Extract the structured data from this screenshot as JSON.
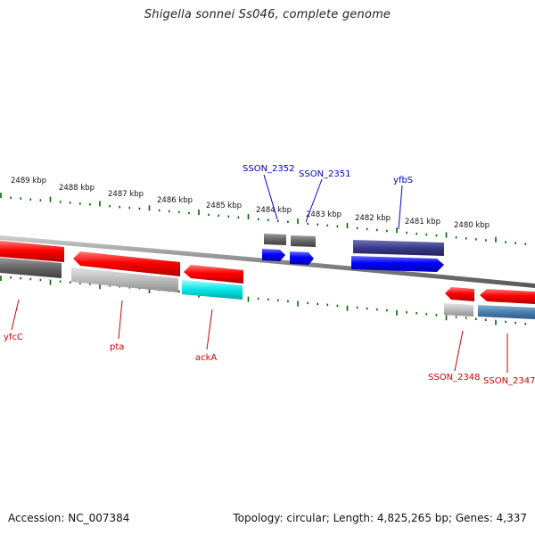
{
  "title": "Shigella sonnei Ss046, complete genome",
  "footer": {
    "accession": "Accession: NC_007384",
    "stats": "Topology: circular; Length: 4,825,265 bp; Genes: 4,337"
  },
  "scale_labels": [
    "2489 kbp",
    "2488 kbp",
    "2487 kbp",
    "2486 kbp",
    "2485 kbp",
    "2484 kbp",
    "2483 kbp",
    "2482 kbp",
    "2481 kbp",
    "2480 kbp"
  ],
  "genes": {
    "forward": [
      {
        "name": "SSON_2352",
        "color": "#0000ff"
      },
      {
        "name": "SSON_2351",
        "color": "#0000ff"
      },
      {
        "name": "yfbS",
        "color": "#0000ff"
      }
    ],
    "reverse": [
      {
        "name": "yfcC",
        "color": "#ff0000"
      },
      {
        "name": "pta",
        "color": "#ff0000"
      },
      {
        "name": "ackA",
        "color": "#ff0000"
      },
      {
        "name": "SSON_2348",
        "color": "#ff0000"
      },
      {
        "name": "SSON_2347",
        "color": "#ff0000"
      }
    ]
  },
  "colors": {
    "forward_label": "#0000bb",
    "reverse_label": "#cc0000",
    "backbone": "#888888",
    "tick": "#006600",
    "feature_gray": "#666666",
    "feature_light_gray": "#bbbbbb",
    "feature_cyan": "#00e5e5",
    "feature_dark_blue": "#3a3a8a",
    "feature_steel_blue": "#4a7fb0"
  }
}
